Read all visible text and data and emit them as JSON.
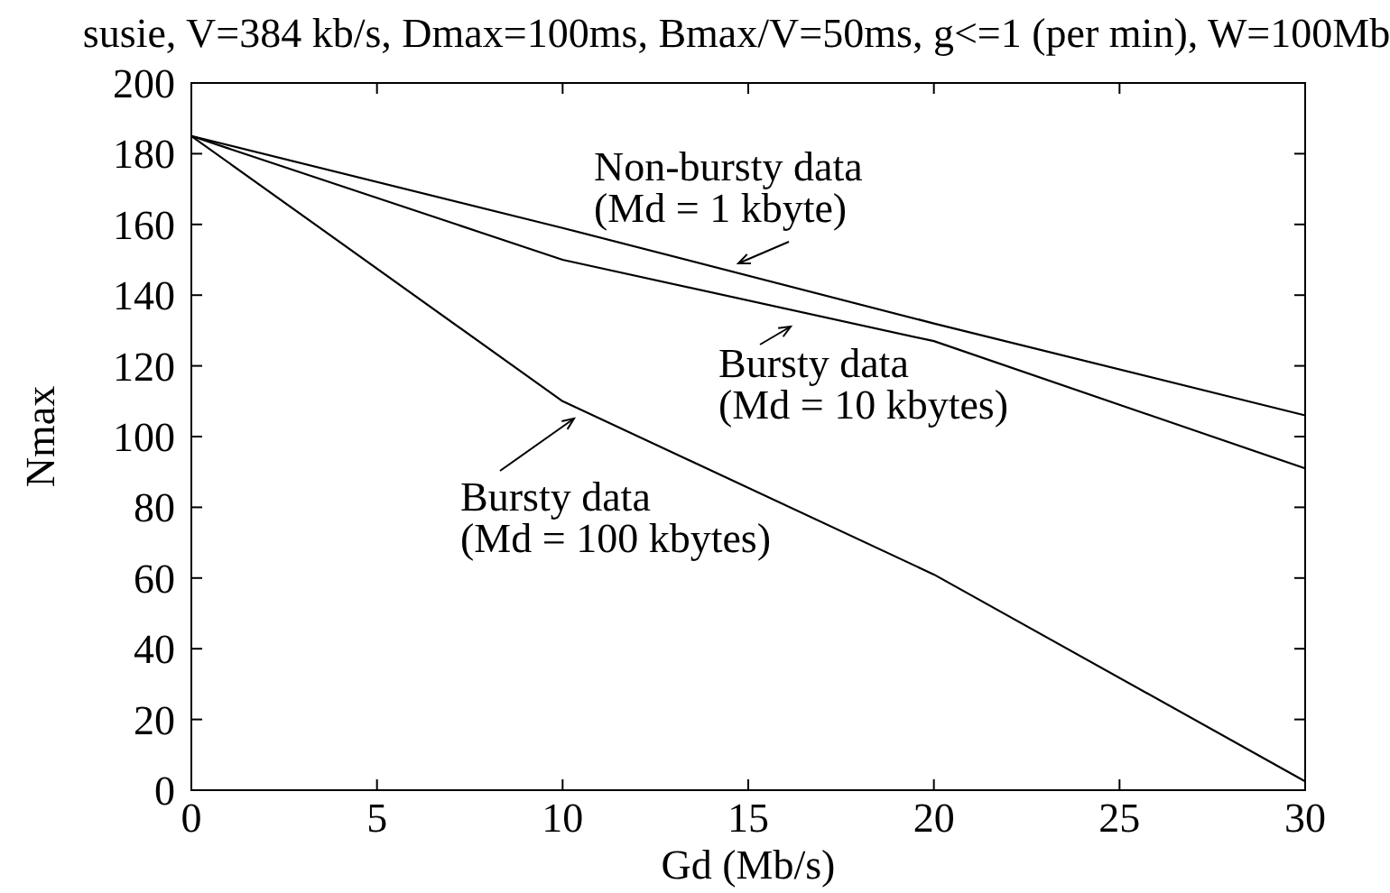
{
  "chart_data": {
    "type": "line",
    "title": "susie, V=384 kb/s, Dmax=100ms, Bmax/V=50ms, g<=1 (per min), W=100Mb",
    "xlabel": "Gd (Mb/s)",
    "ylabel": "Nmax",
    "x": [
      0,
      10,
      20,
      30
    ],
    "series": [
      {
        "color": "#000000",
        "values": [
          185,
          159,
          132,
          106
        ]
      },
      {
        "color": "#000000",
        "values": [
          185,
          150,
          127,
          91
        ]
      },
      {
        "color": "#000000",
        "values": [
          185,
          110,
          61,
          2.5
        ]
      }
    ],
    "xlim": [
      0,
      30
    ],
    "ylim": [
      0,
      200
    ],
    "xticks": [
      0,
      5,
      10,
      15,
      20,
      25,
      30
    ],
    "yticks": [
      0,
      20,
      40,
      60,
      80,
      100,
      120,
      140,
      160,
      180,
      200
    ],
    "grid": false,
    "marker": "none",
    "line_style": "solid",
    "annotations": [
      "Non-bursty data\n(Md = 1 kbyte)",
      "Bursty data\n(Md = 10 kbytes)",
      "Bursty data\n(Md = 100 kbytes)"
    ]
  }
}
